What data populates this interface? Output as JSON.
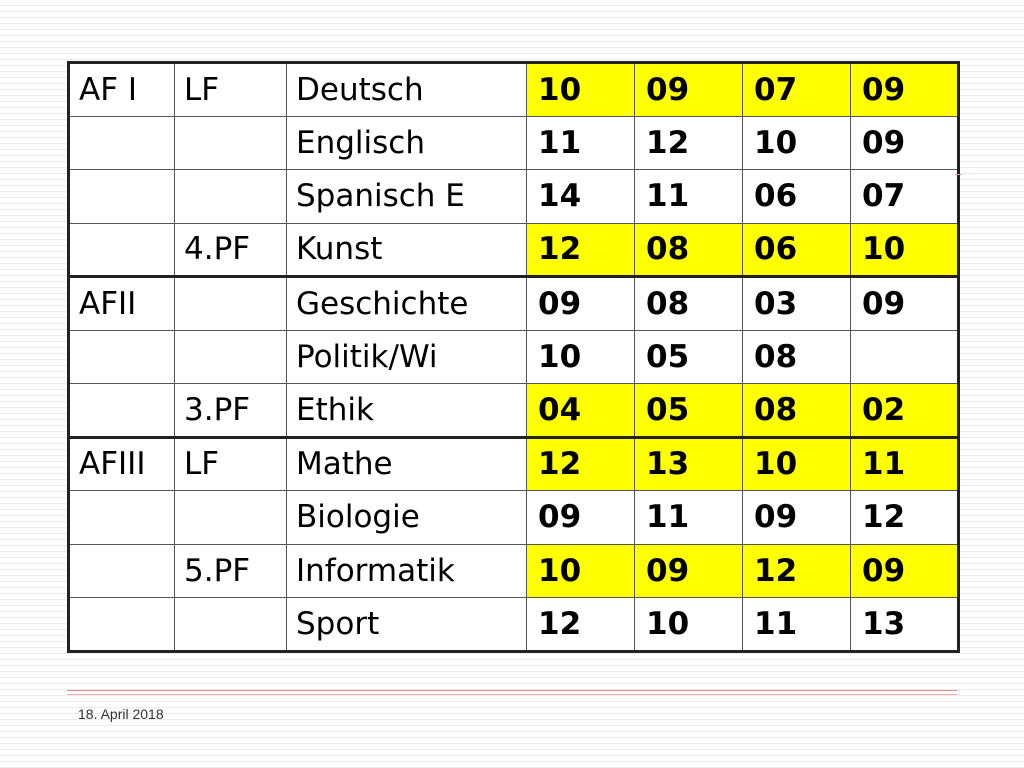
{
  "table": {
    "rows": [
      {
        "area": "AF I",
        "type": "LF",
        "subject": "Deutsch",
        "grades": [
          "10",
          "09",
          "07",
          "09"
        ],
        "highlight": true
      },
      {
        "area": "",
        "type": "",
        "subject": "Englisch",
        "grades": [
          "11",
          "12",
          "10",
          "09"
        ],
        "highlight": false
      },
      {
        "area": "",
        "type": "",
        "subject": "Spanisch E",
        "grades": [
          "14",
          "11",
          "06",
          "07"
        ],
        "highlight": false
      },
      {
        "area": "",
        "type": "4.PF",
        "subject": "Kunst",
        "grades": [
          "12",
          "08",
          "06",
          "10"
        ],
        "highlight": true
      },
      {
        "area": "AFII",
        "type": "",
        "subject": "Geschichte",
        "grades": [
          "09",
          "08",
          "03",
          "09"
        ],
        "highlight": false
      },
      {
        "area": "",
        "type": "",
        "subject": "Politik/Wi",
        "grades": [
          "10",
          "05",
          "08",
          ""
        ],
        "highlight": false
      },
      {
        "area": "",
        "type": "3.PF",
        "subject": "Ethik",
        "grades": [
          "04",
          "05",
          "08",
          "02"
        ],
        "highlight": true
      },
      {
        "area": "AFIII",
        "type": "LF",
        "subject": "Mathe",
        "grades": [
          "12",
          "13",
          "10",
          "11"
        ],
        "highlight": true
      },
      {
        "area": "",
        "type": "",
        "subject": "Biologie",
        "grades": [
          "09",
          "11",
          "09",
          "12"
        ],
        "highlight": false
      },
      {
        "area": "",
        "type": "5.PF",
        "subject": "Informatik",
        "grades": [
          "10",
          "09",
          "12",
          "09"
        ],
        "highlight": true
      },
      {
        "area": "",
        "type": "",
        "subject": "Sport",
        "grades": [
          "12",
          "10",
          "11",
          "13"
        ],
        "highlight": false
      }
    ]
  },
  "footer": {
    "date": "18. April 2018"
  },
  "colors": {
    "highlight": "#ffff00",
    "border": "#222222",
    "footer_line": "#e88a8a"
  }
}
